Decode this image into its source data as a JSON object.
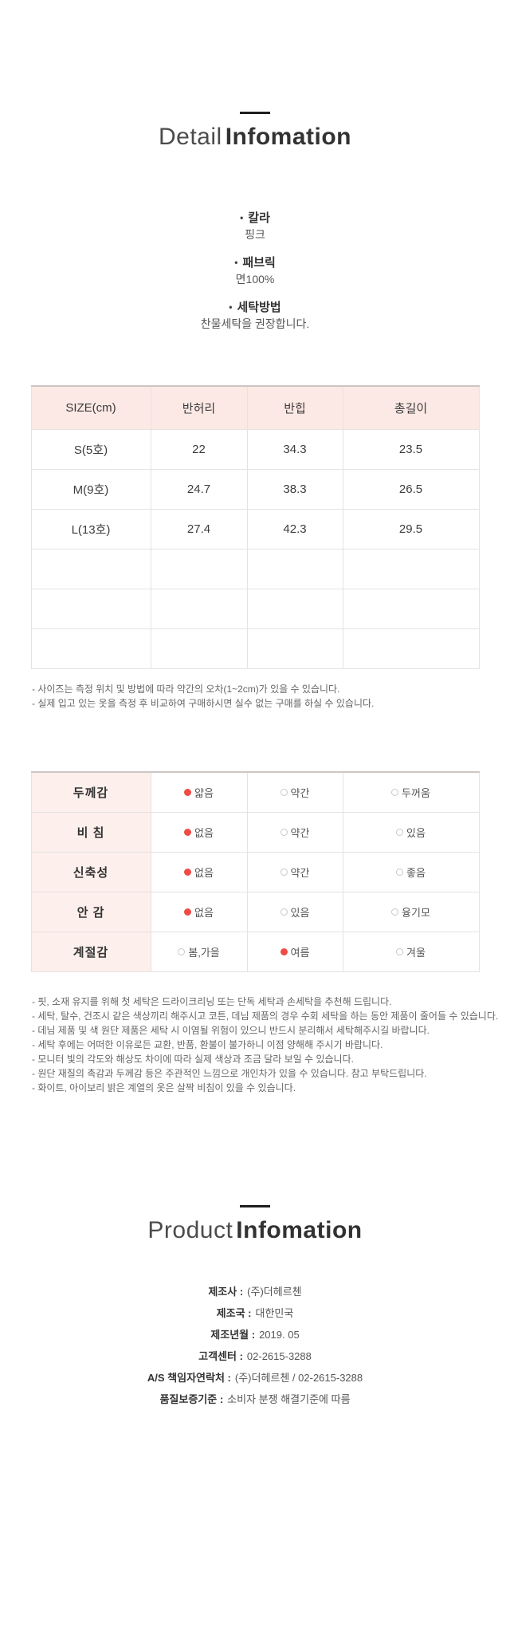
{
  "colors": {
    "header_pink": "#fce9e5",
    "column_pink": "#fdefeb",
    "radio_selected_red": "#ee4c46",
    "divider_black": "#1e1e1e"
  },
  "detail_section": {
    "title_light": "Detail",
    "title_bold": "Infomation",
    "bullet_icon": "•",
    "bullets": [
      {
        "label": "칼라",
        "value": "핑크"
      },
      {
        "label": "패브릭",
        "value": "면100%"
      },
      {
        "label": "세탁방법",
        "value": "찬물세탁을 권장합니다."
      }
    ]
  },
  "size_table": {
    "headers": [
      "SIZE(cm)",
      "반허리",
      "반힙",
      "총길이"
    ],
    "rows": [
      [
        "S(5호)",
        "22",
        "34.3",
        "23.5"
      ],
      [
        "M(9호)",
        "24.7",
        "38.3",
        "26.5"
      ],
      [
        "L(13호)",
        "27.4",
        "42.3",
        "29.5"
      ],
      [
        "",
        "",
        "",
        ""
      ],
      [
        "",
        "",
        "",
        ""
      ],
      [
        "",
        "",
        "",
        ""
      ]
    ],
    "notes": [
      "- 사이즈는 측정 위치 및 방법에 따라 약간의 오차(1~2cm)가 있을 수 있습니다.",
      "- 실제 입고 있는 옷을 측정 후 비교하여 구매하시면 실수 없는 구매를 하실 수 있습니다."
    ]
  },
  "fabric_table": {
    "rows": [
      {
        "label": "두께감",
        "options": [
          {
            "text": "얇음",
            "selected": true
          },
          {
            "text": "약간",
            "selected": false
          },
          {
            "text": "두꺼움",
            "selected": false
          }
        ]
      },
      {
        "label": "비 침",
        "options": [
          {
            "text": "없음",
            "selected": true
          },
          {
            "text": "약간",
            "selected": false
          },
          {
            "text": "있음",
            "selected": false
          }
        ]
      },
      {
        "label": "신축성",
        "options": [
          {
            "text": "없음",
            "selected": true
          },
          {
            "text": "약간",
            "selected": false
          },
          {
            "text": "좋음",
            "selected": false
          }
        ]
      },
      {
        "label": "안 감",
        "options": [
          {
            "text": "없음",
            "selected": true
          },
          {
            "text": "있음",
            "selected": false
          },
          {
            "text": "융기모",
            "selected": false
          }
        ]
      },
      {
        "label": "계절감",
        "options": [
          {
            "text": "봄,가을",
            "selected": false
          },
          {
            "text": "여름",
            "selected": true
          },
          {
            "text": "겨울",
            "selected": false
          }
        ]
      }
    ],
    "notes": [
      "- 핏, 소재 유지를 위해 첫 세탁은 드라이크리닝 또는 단독 세탁과 손세탁을 추천해 드립니다.",
      "- 세탁, 탈수, 건조시 같은 색상끼리 해주시고 코튼, 데님 제품의 경우 수회 세탁을 하는 동안 제품이 줄어들 수 있습니다.",
      "- 데님 제품 및 색 원단 제품은 세탁 시 이염될 위험이 있으니 반드시 분리해서 세탁해주시길 바랍니다.",
      "- 세탁 후에는 어떠한 이유로든 교환, 반품, 환불이 불가하니 이점 양해해 주시기 바랍니다.",
      "- 모니터 빛의 각도와 해상도 차이에 따라 실제 색상과 조금 달라 보일 수 있습니다.",
      "- 원단 재질의 촉감과 두께감 등은 주관적인 느낌으로 개인차가 있을 수 있습니다. 참고 부탁드립니다.",
      "- 화이트, 아이보리 밝은 계열의 옷은 살짝 비침이 있을 수 있습니다."
    ]
  },
  "product_section": {
    "title_light": "Product",
    "title_bold": "Infomation",
    "items": [
      {
        "label": "제조사 :",
        "value": "(주)더헤르첸"
      },
      {
        "label": "제조국 :",
        "value": "대한민국"
      },
      {
        "label": "제조년월 :",
        "value": "2019. 05"
      },
      {
        "label": "고객센터 :",
        "value": "02-2615-3288"
      },
      {
        "label": "A/S 책임자연락처 :",
        "value": "(주)더헤르첸 / 02-2615-3288"
      },
      {
        "label": "품질보증기준 :",
        "value": "소비자 분쟁 해결기준에 따름"
      }
    ]
  }
}
